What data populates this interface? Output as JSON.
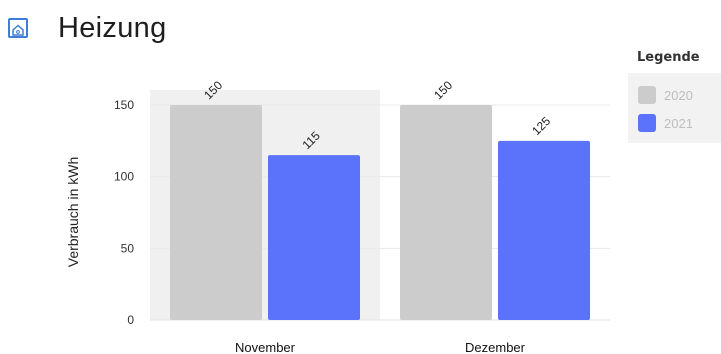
{
  "header": {
    "title": "Heizung",
    "icon": "home-icon",
    "icon_color": "#3d7fd6"
  },
  "chart_data": {
    "type": "bar",
    "categories": [
      "November",
      "Dezember"
    ],
    "series": [
      {
        "name": "2020",
        "values": [
          150,
          150
        ],
        "color": "#cccccc"
      },
      {
        "name": "2021",
        "values": [
          115,
          125
        ],
        "color": "#5b72fb"
      }
    ],
    "ylabel": "Verbrauch in kWh",
    "xlabel": "",
    "ylim": [
      0,
      150
    ],
    "yticks": [
      0,
      50,
      100,
      150
    ],
    "grid": true,
    "highlighted_category": "November",
    "legend_title": "Legende",
    "legend_placement": "right"
  }
}
